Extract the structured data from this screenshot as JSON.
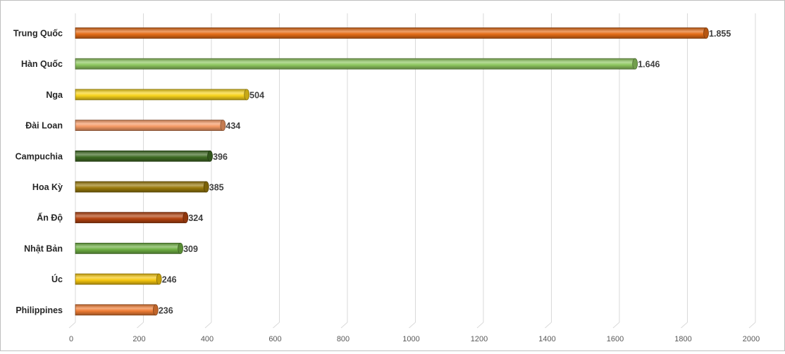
{
  "chart_data": {
    "type": "bar",
    "orientation": "horizontal",
    "title": "",
    "xlabel": "",
    "ylabel": "",
    "xlim": [
      0,
      2000
    ],
    "x_ticks": [
      "0",
      "200",
      "400",
      "600",
      "800",
      "1000",
      "1200",
      "1400",
      "1600",
      "1800",
      "2000"
    ],
    "grid": "vertical",
    "legend": "none",
    "categories": [
      "Trung Quốc",
      "Hàn Quốc",
      "Nga",
      "Đài Loan",
      "Campuchia",
      "Hoa Kỳ",
      "Ấn Độ",
      "Nhật Bản",
      "Úc",
      "Philippines"
    ],
    "values": [
      1855,
      1646,
      504,
      434,
      396,
      385,
      324,
      309,
      246,
      236
    ],
    "value_labels": [
      "1.855",
      "1.646",
      "504",
      "434",
      "396",
      "385",
      "324",
      "309",
      "246",
      "236"
    ],
    "colors": [
      "#e46c17",
      "#8fc760",
      "#f7d21c",
      "#f59a65",
      "#3f6b23",
      "#9a7a0a",
      "#b4430f",
      "#6fb043",
      "#f6c70f",
      "#ef7d35"
    ]
  }
}
